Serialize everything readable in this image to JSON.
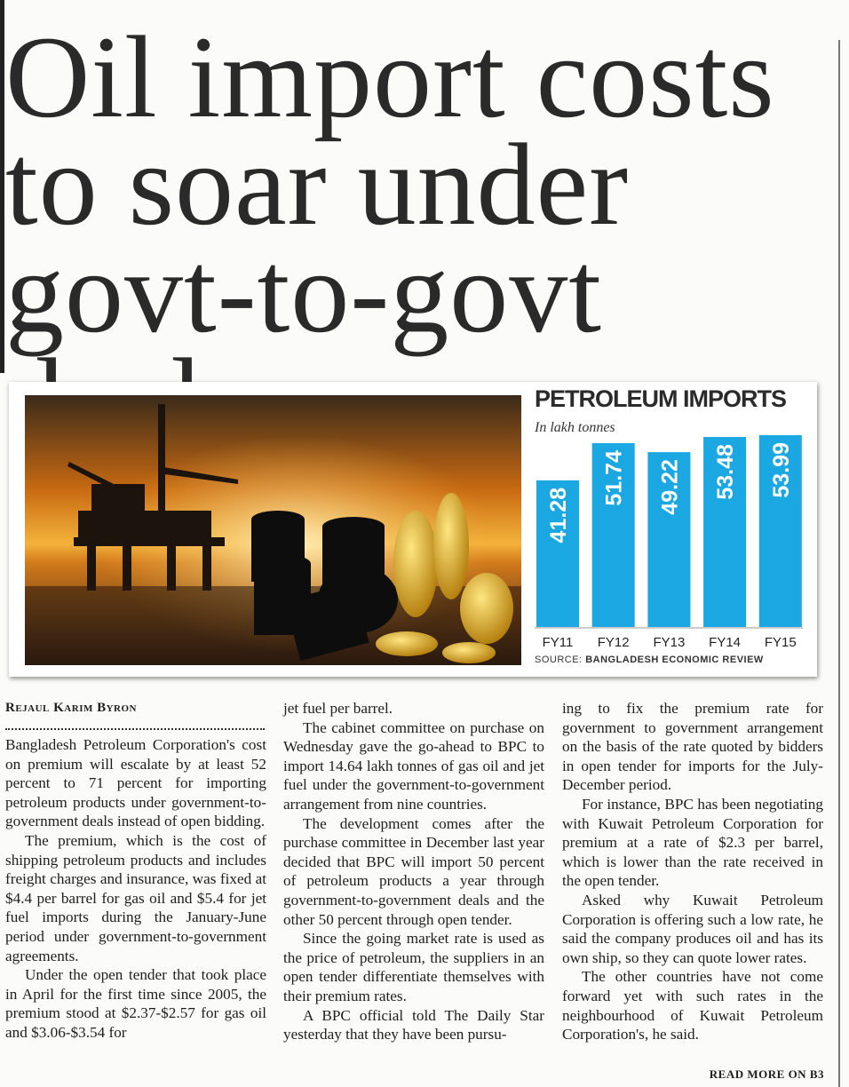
{
  "headline": "Oil import costs to soar under govt-to-govt deals",
  "chart_data": {
    "type": "bar",
    "title": "PETROLEUM IMPORTS",
    "subtitle": "In lakh tonnes",
    "categories": [
      "FY11",
      "FY12",
      "FY13",
      "FY14",
      "FY15"
    ],
    "values": [
      41.28,
      51.74,
      49.22,
      53.48,
      53.99
    ],
    "color": "#1aa7e2",
    "source_label": "SOURCE:",
    "source": "BANGLADESH ECONOMIC REVIEW"
  },
  "article": {
    "byline": "Rejaul Karim Byron",
    "columns": [
      [
        "Bangladesh Petroleum Corporation's cost on premium will escalate by at least 52 percent to 71 percent for importing petroleum products under government-to-government deals instead of open bidding.",
        "The premium, which is the cost of shipping petroleum products and includes freight charges and insurance, was fixed at $4.4 per barrel for gas oil and $5.4 for jet fuel imports during the January-June period under government-to-government agreements.",
        "Under the open tender that took place in April for the first time since 2005, the premium stood at $2.37-$2.57 for gas oil and $3.06-$3.54 for"
      ],
      [
        "jet fuel per barrel.",
        "The cabinet committee on purchase on Wednesday gave the go-ahead to BPC to import 14.64 lakh tonnes of gas oil and jet fuel under the government-to-government arrangement from nine countries.",
        "The development comes after the purchase committee in December last year decided that BPC will import 50 percent of petroleum products a year through government-to-government deals and the other 50 percent through open tender.",
        "Since the going market rate is used as the price of petroleum, the suppliers in an open tender differentiate themselves with their premium rates.",
        "A BPC official told The Daily Star yesterday that they have been pursu-"
      ],
      [
        "ing to fix the premium rate for government to government arrangement on the basis of the rate quoted by bidders in open tender for imports for the July-December period.",
        "For instance, BPC has been negotiating with Kuwait Petroleum Corporation for premium at a rate of $2.3 per barrel, which is lower than the rate received in the open tender.",
        "Asked why Kuwait Petroleum Corporation is offering such a low rate, he said the company produces oil and has its own ship, so they can quote lower rates.",
        "The other countries have not come forward yet with such rates in the neighbourhood of Kuwait Petroleum Corporation's, he said."
      ]
    ],
    "read_more": "READ MORE ON B3"
  }
}
